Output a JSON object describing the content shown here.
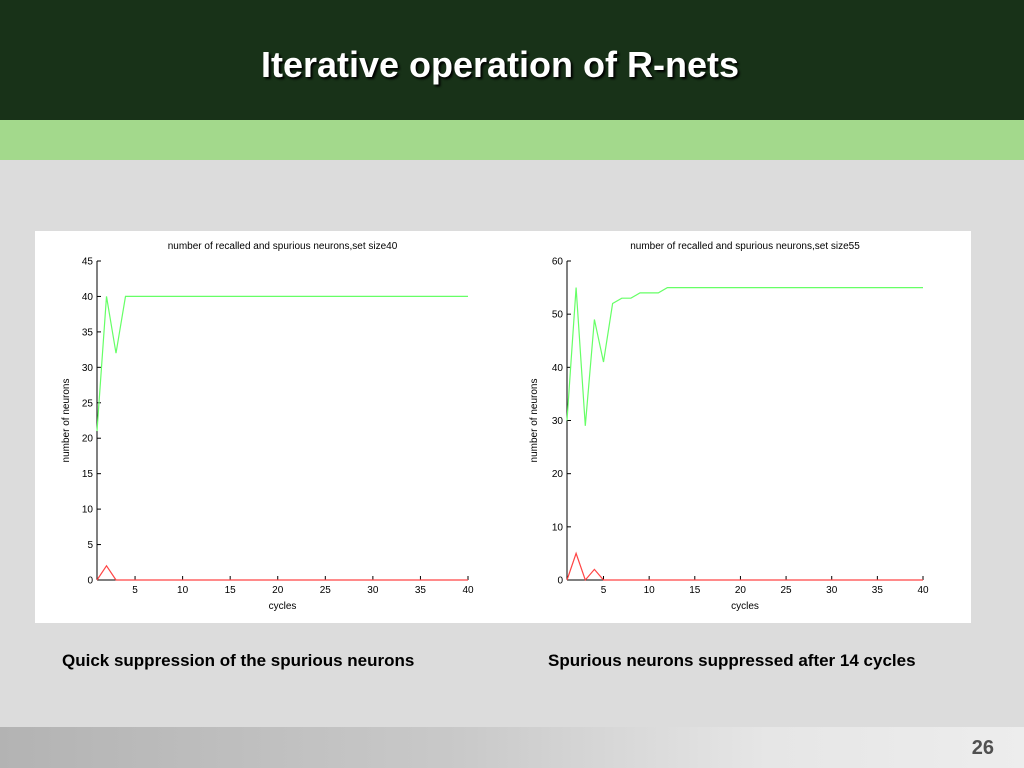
{
  "slide": {
    "title": "Iterative operation of R-nets",
    "captions": [
      "Quick suppression of the spurious neurons",
      "Spurious neurons suppressed after 14 cycles"
    ],
    "page_number": "26"
  },
  "colors": {
    "header": "#183218",
    "band": "#a3d98c",
    "recalled": "#66ff66",
    "spurious": "#ff4444"
  },
  "chart_data": [
    {
      "type": "line",
      "title": "number of recalled and spurious neurons,set size40",
      "xlabel": "cycles",
      "ylabel": "number of neurons",
      "xlim": [
        1,
        40
      ],
      "ylim": [
        0,
        45
      ],
      "xticks": [
        5,
        10,
        15,
        20,
        25,
        30,
        35,
        40
      ],
      "yticks": [
        0,
        5,
        10,
        15,
        20,
        25,
        30,
        35,
        40,
        45
      ],
      "grid": false,
      "series": [
        {
          "color": "#66ff66",
          "x": [
            1,
            2,
            3,
            4,
            5,
            40
          ],
          "y": [
            21,
            40,
            32,
            40,
            40,
            40
          ]
        },
        {
          "color": "#ff4444",
          "x": [
            1,
            2,
            3,
            4,
            40
          ],
          "y": [
            0,
            2,
            0,
            0,
            0
          ]
        }
      ]
    },
    {
      "type": "line",
      "title": "number of recalled and spurious neurons,set size55",
      "xlabel": "cycles",
      "ylabel": "number of neurons",
      "xlim": [
        1,
        40
      ],
      "ylim": [
        0,
        60
      ],
      "xticks": [
        5,
        10,
        15,
        20,
        25,
        30,
        35,
        40
      ],
      "yticks": [
        0,
        10,
        20,
        30,
        40,
        50,
        60
      ],
      "grid": false,
      "series": [
        {
          "color": "#66ff66",
          "x": [
            1,
            2,
            3,
            4,
            5,
            6,
            7,
            8,
            9,
            10,
            11,
            12,
            40
          ],
          "y": [
            30,
            55,
            29,
            49,
            41,
            52,
            53,
            53,
            54,
            54,
            54,
            55,
            55
          ]
        },
        {
          "color": "#ff4444",
          "x": [
            1,
            2,
            3,
            4,
            5,
            6,
            40
          ],
          "y": [
            0,
            5,
            0,
            2,
            0,
            0,
            0
          ]
        }
      ]
    }
  ]
}
